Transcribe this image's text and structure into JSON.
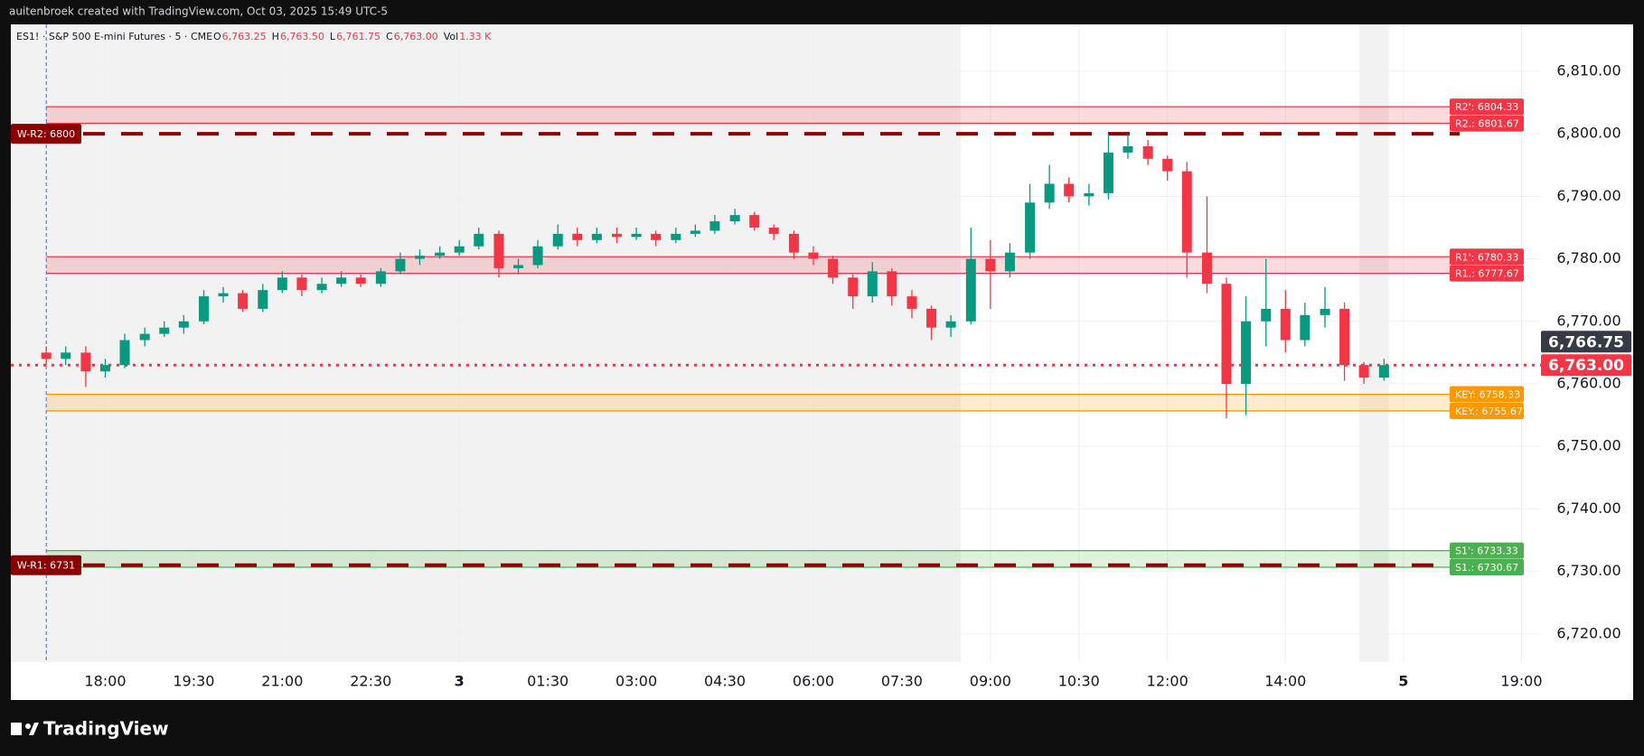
{
  "header": {
    "caption": "auitenbroek created with TradingView.com, Oct 03, 2025 15:49 UTC-5"
  },
  "footer": {
    "brand": "TradingView"
  },
  "chart_data": {
    "type": "candlestick",
    "symbol": "ES1! · S&P 500 E-mini Futures · 5 · CME",
    "ohlc_legend": [
      {
        "key": "O",
        "value": "6,763.25"
      },
      {
        "key": "H",
        "value": "6,763.50"
      },
      {
        "key": "L",
        "value": "6,761.75"
      },
      {
        "key": "C",
        "value": "6,763.00"
      },
      {
        "key": "Vol",
        "value": "1.33 K"
      }
    ],
    "xlim": [
      -1.6,
      24.33
    ],
    "ylim": [
      6715.5,
      6817.5
    ],
    "grid": true,
    "xticks": [
      {
        "value": 0,
        "label": "18:00"
      },
      {
        "value": 1.5,
        "label": "19:30"
      },
      {
        "value": 3,
        "label": "21:00"
      },
      {
        "value": 4.5,
        "label": "22:30"
      },
      {
        "value": 6,
        "label": "3"
      },
      {
        "value": 7.5,
        "label": "01:30"
      },
      {
        "value": 9,
        "label": "03:00"
      },
      {
        "value": 10.5,
        "label": "04:30"
      },
      {
        "value": 12,
        "label": "06:00"
      },
      {
        "value": 13.5,
        "label": "07:30"
      },
      {
        "value": 15,
        "label": "09:00"
      },
      {
        "value": 16.5,
        "label": "10:30"
      },
      {
        "value": 18,
        "label": "12:00"
      },
      {
        "value": 20,
        "label": "14:00"
      },
      {
        "value": 22,
        "label": "5"
      },
      {
        "value": 24,
        "label": "19:00"
      }
    ],
    "yticks": [
      {
        "value": 6720,
        "label": "6,720.00"
      },
      {
        "value": 6730,
        "label": "6,730.00"
      },
      {
        "value": 6740,
        "label": "6,740.00"
      },
      {
        "value": 6750,
        "label": "6,750.00"
      },
      {
        "value": 6760,
        "label": "6,760.00"
      },
      {
        "value": 6770,
        "label": "6,770.00"
      },
      {
        "value": 6780,
        "label": "6,780.00"
      },
      {
        "value": 6790,
        "label": "6,790.00"
      },
      {
        "value": 6800,
        "label": "6,800.00"
      },
      {
        "value": 6810,
        "label": "6,810.00"
      }
    ],
    "session_shading": [
      [
        -1.6,
        14.5
      ],
      [
        21.25,
        21.75
      ]
    ],
    "session_break": -1,
    "up_color": "#089981",
    "down_color": "#f23645",
    "x": [
      -1,
      -0.67,
      -0.33,
      0,
      0.33,
      0.67,
      1,
      1.33,
      1.67,
      2,
      2.33,
      2.67,
      3,
      3.33,
      3.67,
      4,
      4.33,
      4.67,
      5,
      5.33,
      5.67,
      6,
      6.33,
      6.67,
      7,
      7.33,
      7.67,
      8,
      8.33,
      8.67,
      9,
      9.33,
      9.67,
      10,
      10.33,
      10.67,
      11,
      11.33,
      11.67,
      12,
      12.33,
      12.67,
      13,
      13.33,
      13.67,
      14,
      14.33,
      14.67,
      15,
      15.33,
      15.67,
      16,
      16.33,
      16.67,
      17,
      17.33,
      17.67,
      18,
      18.33,
      18.67,
      19,
      19.33,
      19.67,
      20,
      20.33,
      20.67,
      21,
      21.33,
      21.67
    ],
    "open": [
      6765,
      6764,
      6765,
      6762,
      6763,
      6767,
      6768,
      6769,
      6770,
      6774,
      6774.5,
      6772,
      6775,
      6777,
      6775,
      6776,
      6777,
      6776,
      6778,
      6780,
      6780.5,
      6781,
      6782,
      6784,
      6778.5,
      6779,
      6782,
      6784,
      6783,
      6784,
      6783.5,
      6784,
      6783,
      6784,
      6784.5,
      6786,
      6787,
      6785,
      6784,
      6781,
      6780,
      6777,
      6774,
      6778,
      6774,
      6772,
      6769,
      6770,
      6780,
      6778,
      6781,
      6789,
      6792,
      6790,
      6790.5,
      6797,
      6798,
      6796,
      6794,
      6781,
      6776,
      6760,
      6770,
      6772,
      6767,
      6771,
      6772,
      6763,
      6761
    ],
    "high": [
      6766,
      6766,
      6766,
      6764,
      6768,
      6769,
      6770,
      6771,
      6775,
      6775.5,
      6775,
      6776,
      6778,
      6777.5,
      6777,
      6778,
      6777.5,
      6778.5,
      6781,
      6781.5,
      6782,
      6783,
      6785,
      6784.5,
      6780,
      6783,
      6785.5,
      6785,
      6785,
      6785,
      6785,
      6784.5,
      6785,
      6785.5,
      6787,
      6788,
      6787.5,
      6785.5,
      6784.5,
      6782,
      6780.5,
      6777.5,
      6779.5,
      6778.5,
      6775,
      6772.5,
      6771,
      6785,
      6783,
      6782.5,
      6792,
      6795,
      6793,
      6792,
      6800,
      6800,
      6799,
      6796.5,
      6795.5,
      6790,
      6777,
      6774,
      6780,
      6775,
      6773,
      6775.5,
      6773,
      6763.5,
      6764
    ],
    "low": [
      6763,
      6763,
      6759.5,
      6761,
      6762.5,
      6766,
      6767.5,
      6768,
      6769.5,
      6773,
      6771.5,
      6771.5,
      6774.5,
      6774,
      6774.5,
      6775.5,
      6775.5,
      6775.5,
      6777.5,
      6779,
      6780,
      6780.5,
      6781.5,
      6777,
      6777.5,
      6778.5,
      6781.5,
      6782,
      6782.5,
      6782.5,
      6783,
      6782,
      6782.5,
      6783.5,
      6784,
      6785.5,
      6784.5,
      6783,
      6780,
      6779,
      6776,
      6772,
      6773,
      6772.5,
      6770.5,
      6767,
      6767.5,
      6769.5,
      6772,
      6777,
      6780,
      6788,
      6789,
      6788.5,
      6789.5,
      6796,
      6795,
      6792.5,
      6777,
      6774.5,
      6754.5,
      6755,
      6766,
      6765,
      6766,
      6769,
      6760.5,
      6760,
      6760.5
    ],
    "close": [
      6764,
      6765,
      6762,
      6763,
      6767,
      6768,
      6769,
      6770,
      6774,
      6774.5,
      6772,
      6775,
      6777,
      6775,
      6776,
      6777,
      6776,
      6778,
      6780,
      6780.5,
      6781,
      6782,
      6784,
      6778.5,
      6779,
      6782,
      6784,
      6783,
      6784,
      6783.5,
      6784,
      6783,
      6784,
      6784.5,
      6786,
      6787,
      6785,
      6784,
      6781,
      6780,
      6777,
      6774,
      6778,
      6774,
      6772,
      6769,
      6770,
      6780,
      6778,
      6781,
      6789,
      6792,
      6790,
      6790.5,
      6797,
      6798,
      6796,
      6794,
      6781,
      6776,
      6760,
      6770,
      6772,
      6767,
      6771,
      6772,
      6763,
      6761,
      6763
    ],
    "zones": [
      {
        "color": "#f23645",
        "upper": {
          "label": "R2': 6804.33",
          "value": 6804.33
        },
        "lower": {
          "label": "R2.: 6801.67",
          "value": 6801.67
        }
      },
      {
        "color": "#f23645",
        "upper": {
          "label": "R1': 6780.33",
          "value": 6780.33
        },
        "lower": {
          "label": "R1.: 6777.67",
          "value": 6777.67
        }
      },
      {
        "color": "#ff9800",
        "upper": {
          "label": "KEY: 6758.33",
          "value": 6758.33
        },
        "lower": {
          "label": "KEY.: 6755.67",
          "value": 6755.67
        }
      },
      {
        "color": "#4caf50",
        "upper": {
          "label": "S1': 6733.33",
          "value": 6733.33
        },
        "lower": {
          "label": "S1.: 6730.67",
          "value": 6730.67
        }
      }
    ],
    "weekly_levels": {
      "color": "#8b0000",
      "levels": [
        {
          "label": "W-R2: 6800",
          "value": 6800
        },
        {
          "label": "W-R1: 6731",
          "value": 6731
        }
      ]
    },
    "price_labels": [
      {
        "label": "6,766.75",
        "value": 6766.75,
        "color": "#363a45"
      },
      {
        "label": "6,763.00",
        "value": 6763,
        "color": "#f23645"
      }
    ],
    "last_price_line": {
      "value": 6763,
      "color": "#f23645"
    }
  }
}
